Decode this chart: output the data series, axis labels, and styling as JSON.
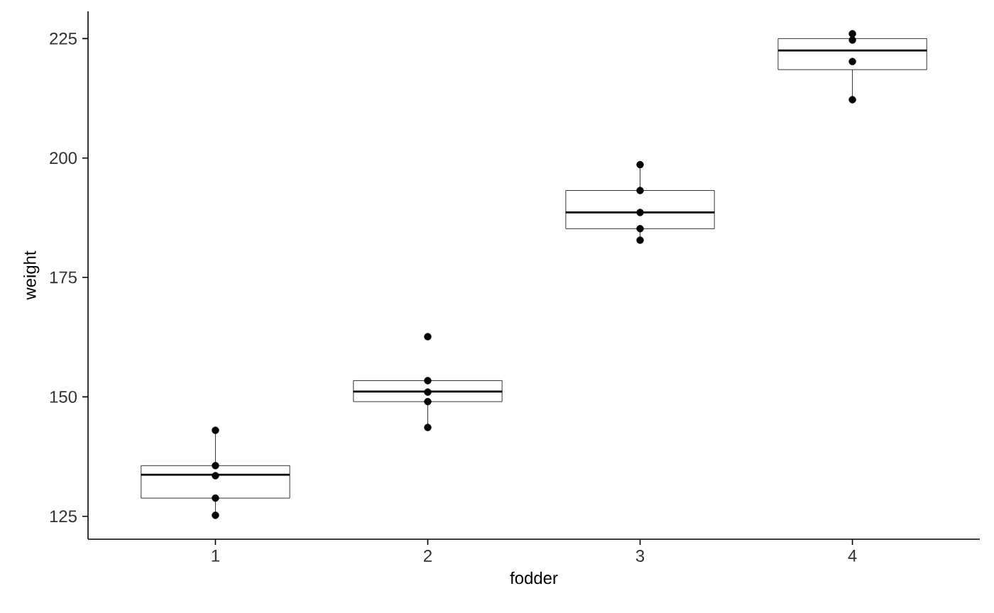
{
  "chart_data": {
    "type": "box",
    "xlabel": "fodder",
    "ylabel": "weight",
    "categories": [
      "1",
      "2",
      "3",
      "4"
    ],
    "boxes": [
      {
        "low": 125.2,
        "q1": 128.8,
        "median": 133.7,
        "q3": 135.6,
        "high": 143.0
      },
      {
        "low": 143.6,
        "q1": 149.0,
        "median": 151.1,
        "q3": 153.4,
        "high": 153.4
      },
      {
        "low": 182.8,
        "q1": 185.2,
        "median": 188.6,
        "q3": 193.2,
        "high": 198.6
      },
      {
        "low": 212.2,
        "q1": 218.5,
        "median": 222.5,
        "q3": 225.0,
        "high": 226.0
      }
    ],
    "color": "#000000",
    "series": [
      {
        "type": "scatter",
        "color": "#000000",
        "x": [
          "1",
          "1",
          "1",
          "1",
          "1",
          "2",
          "2",
          "2",
          "2",
          "2",
          "3",
          "3",
          "3",
          "3",
          "3",
          "4",
          "4",
          "4",
          "4"
        ],
        "values": [
          143.0,
          135.6,
          133.5,
          128.8,
          125.2,
          162.6,
          153.4,
          151.0,
          149.0,
          143.6,
          198.6,
          193.2,
          188.6,
          185.2,
          182.8,
          226.0,
          224.7,
          220.2,
          212.2
        ]
      }
    ],
    "grid": false,
    "ylim": [
      120.2,
      230.7
    ],
    "yticks": [
      125,
      150,
      175,
      200,
      225
    ]
  }
}
